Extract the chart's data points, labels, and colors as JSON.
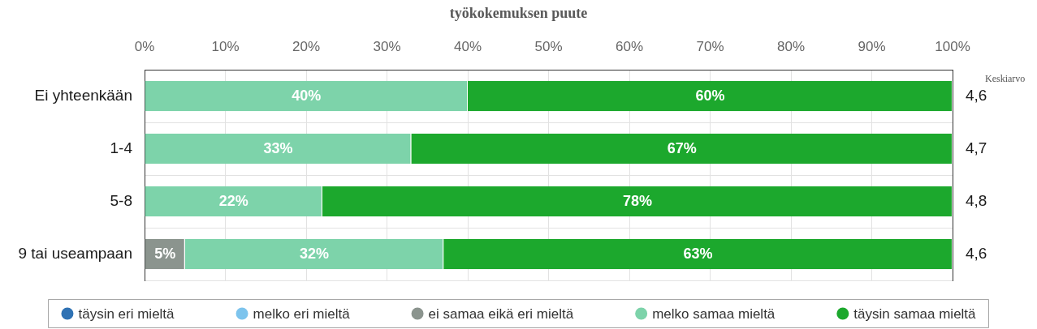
{
  "chart_data": {
    "type": "bar",
    "orientation": "horizontal",
    "stacked": true,
    "title": "työkokemuksen puute",
    "y2label": "Keskiarvo",
    "categories": [
      "Ei yhteenkään",
      "1-4",
      "5-8",
      "9 tai useampaan"
    ],
    "y2_categories": [
      "4,6",
      "4,7",
      "4,8",
      "4,6"
    ],
    "xlim": [
      0,
      100
    ],
    "xticks": [
      {
        "value": 0,
        "label": "0%"
      },
      {
        "value": 10,
        "label": "10%"
      },
      {
        "value": 20,
        "label": "20%"
      },
      {
        "value": 30,
        "label": "30%"
      },
      {
        "value": 40,
        "label": "40%"
      },
      {
        "value": 50,
        "label": "50%"
      },
      {
        "value": 60,
        "label": "60%"
      },
      {
        "value": 70,
        "label": "70%"
      },
      {
        "value": 80,
        "label": "80%"
      },
      {
        "value": 90,
        "label": "90%"
      },
      {
        "value": 100,
        "label": "100%"
      }
    ],
    "grid": true,
    "legend": "bottom",
    "series": [
      {
        "name": "täysin eri mieltä",
        "color": "#2f72b4",
        "values": [
          null,
          null,
          null,
          null
        ]
      },
      {
        "name": "melko eri mieltä",
        "color": "#7dc4ed",
        "values": [
          null,
          null,
          null,
          null
        ]
      },
      {
        "name": "ei samaa eikä eri mieltä",
        "color": "#8b948e",
        "values": [
          null,
          null,
          null,
          5
        ],
        "value_labels": [
          null,
          null,
          null,
          "5%"
        ]
      },
      {
        "name": "melko samaa mieltä",
        "color": "#7dd3aa",
        "values": [
          40,
          33,
          22,
          32
        ],
        "value_labels": [
          "40%",
          "33%",
          "22%",
          "32%"
        ]
      },
      {
        "name": "täysin samaa mieltä",
        "color": "#1ca82d",
        "values": [
          60,
          67,
          78,
          63
        ],
        "value_labels": [
          "60%",
          "67%",
          "78%",
          "63%"
        ]
      }
    ]
  }
}
